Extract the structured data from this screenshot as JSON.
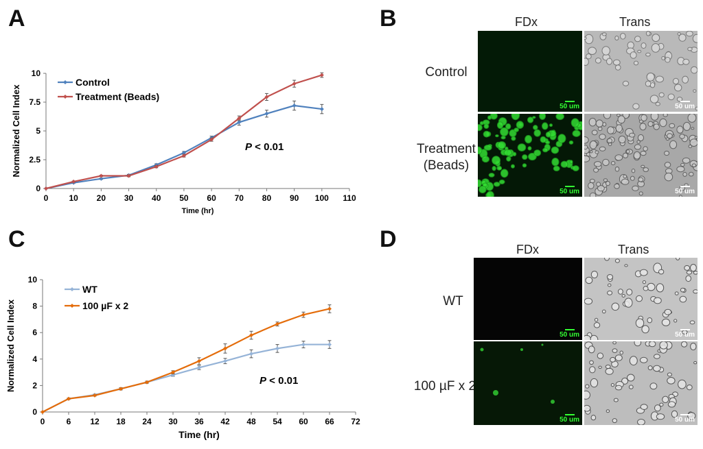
{
  "panels": {
    "a": "A",
    "b": "B",
    "c": "C",
    "d": "D"
  },
  "chart_data": [
    {
      "type": "line",
      "title": "",
      "xlabel": "Time (hr)",
      "ylabel": "Normalized Cell Index",
      "xlim": [
        0,
        110
      ],
      "ylim": [
        0,
        10
      ],
      "x_ticks": [
        0,
        10,
        20,
        30,
        40,
        50,
        60,
        70,
        80,
        90,
        100,
        110
      ],
      "y_ticks": [
        "0",
        "2.5",
        "5",
        "7.5",
        "10"
      ],
      "y_tick_values": [
        0,
        2.5,
        5,
        7.5,
        10
      ],
      "x": [
        0,
        10,
        20,
        30,
        40,
        50,
        60,
        70,
        80,
        90,
        100
      ],
      "series": [
        {
          "name": "Control",
          "color": "#4f81bd",
          "values": [
            0,
            0.5,
            0.85,
            1.15,
            2.05,
            3.1,
            4.4,
            5.75,
            6.5,
            7.2,
            6.9
          ],
          "errors": [
            0,
            0.05,
            0.06,
            0.08,
            0.1,
            0.12,
            0.15,
            0.25,
            0.3,
            0.4,
            0.4
          ]
        },
        {
          "name": "Treatment (Beads)",
          "color": "#c0504d",
          "values": [
            0,
            0.6,
            1.1,
            1.1,
            1.9,
            2.85,
            4.25,
            6.1,
            7.95,
            9.1,
            9.85
          ],
          "errors": [
            0,
            0.05,
            0.06,
            0.08,
            0.1,
            0.12,
            0.15,
            0.2,
            0.3,
            0.3,
            0.2
          ]
        }
      ],
      "legend": "top-left",
      "annotation_p": "P",
      "annotation_rest": " < 0.01"
    },
    {
      "type": "line",
      "title": "",
      "xlabel": "Time (hr)",
      "ylabel": "Normalized Cell Index",
      "xlim": [
        0,
        72
      ],
      "ylim": [
        0,
        10
      ],
      "x_ticks": [
        0,
        6,
        12,
        18,
        24,
        30,
        36,
        42,
        48,
        54,
        60,
        66,
        72
      ],
      "y_ticks": [
        "0",
        "2",
        "4",
        "6",
        "8",
        "10"
      ],
      "y_tick_values": [
        0,
        2,
        4,
        6,
        8,
        10
      ],
      "x": [
        0,
        6,
        12,
        18,
        24,
        30,
        36,
        42,
        48,
        54,
        60,
        66
      ],
      "series": [
        {
          "name": "WT",
          "color": "#95b3d7",
          "values": [
            0,
            1.0,
            1.3,
            1.75,
            2.25,
            2.8,
            3.35,
            3.85,
            4.4,
            4.8,
            5.1,
            5.1
          ],
          "errors": [
            0,
            0.05,
            0.05,
            0.08,
            0.08,
            0.1,
            0.15,
            0.2,
            0.3,
            0.3,
            0.25,
            0.3
          ]
        },
        {
          "name": "100 µF x 2",
          "color": "#e46c0a",
          "values": [
            0,
            1.0,
            1.25,
            1.75,
            2.25,
            3.0,
            3.85,
            4.8,
            5.8,
            6.65,
            7.35,
            7.8
          ],
          "errors": [
            0,
            0.05,
            0.05,
            0.08,
            0.08,
            0.12,
            0.25,
            0.35,
            0.3,
            0.15,
            0.2,
            0.3
          ]
        }
      ],
      "legend": "top-left",
      "annotation_p": "P",
      "annotation_rest": " < 0.01"
    }
  ],
  "panel_b": {
    "col_heads": [
      "FDx",
      "Trans"
    ],
    "rows": [
      "Control",
      "Treatment\n(Beads)"
    ],
    "scale_label": "50 um"
  },
  "panel_d": {
    "col_heads": [
      "FDx",
      "Trans"
    ],
    "rows": [
      "WT",
      "100 µF x 2"
    ],
    "scale_label": "50 um"
  }
}
